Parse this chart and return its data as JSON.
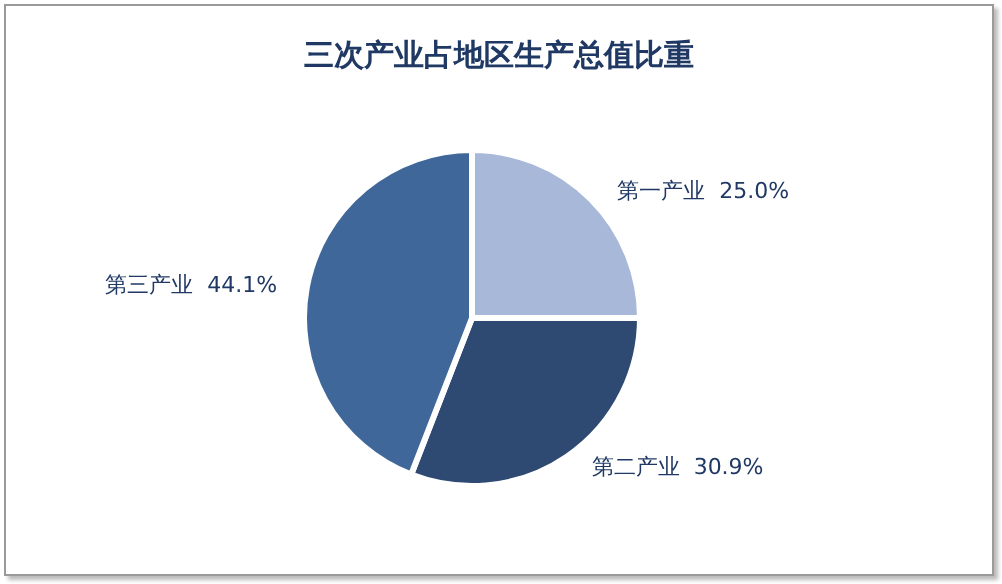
{
  "chart_data": {
    "type": "pie",
    "title": "三次产业占地区生产总值比重",
    "categories": [
      "第一产业",
      "第二产业",
      "第三产业"
    ],
    "values": [
      25.0,
      30.9,
      44.1
    ],
    "value_labels": [
      "25.0%",
      "30.9%",
      "44.1%"
    ],
    "colors": [
      "#a8b8d8",
      "#2e4a72",
      "#3f6799"
    ],
    "legend": false
  }
}
